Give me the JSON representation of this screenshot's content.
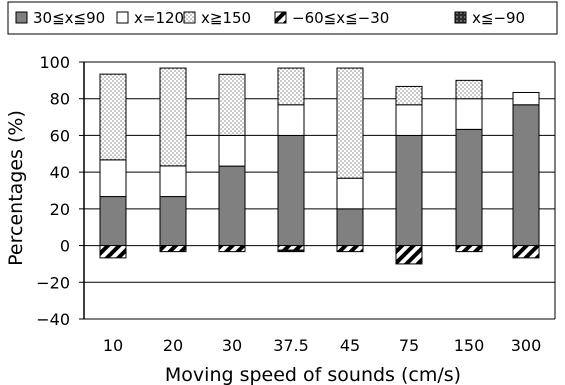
{
  "chart_data": {
    "type": "bar",
    "stacked": true,
    "xlabel": "Moving speed of sounds (cm/s)",
    "ylabel": "Percentages (%)",
    "ylim": [
      -40,
      100
    ],
    "yticks": [
      -40,
      -20,
      0,
      20,
      40,
      60,
      80,
      100
    ],
    "grid": true,
    "legend_position": "top",
    "categories": [
      "10",
      "20",
      "30",
      "37.5",
      "45",
      "75",
      "150",
      "300"
    ],
    "series": [
      {
        "name": "30≦x≦90",
        "direction": "positive",
        "pattern": "solid-gray",
        "values": [
          26.7,
          26.7,
          43.3,
          60,
          20,
          60,
          63.3,
          76.7
        ]
      },
      {
        "name": "x=120",
        "direction": "positive",
        "pattern": "white",
        "values": [
          20,
          16.7,
          16.7,
          16.7,
          16.7,
          16.7,
          16.7,
          6.7
        ]
      },
      {
        "name": "x≧150",
        "direction": "positive",
        "pattern": "dotted",
        "values": [
          46.7,
          53.3,
          33.3,
          20,
          60,
          10,
          10,
          0
        ]
      },
      {
        "name": "−60≦x≦−30",
        "direction": "negative",
        "pattern": "diagonal",
        "values": [
          -6.7,
          -3.3,
          -3.3,
          -2.5,
          -3.3,
          -10,
          -3.3,
          -6.7
        ]
      },
      {
        "name": "x≦−90",
        "direction": "negative",
        "pattern": "dark",
        "values": [
          0,
          0,
          0,
          -0.8,
          0,
          0,
          0,
          0
        ]
      }
    ],
    "colors": {
      "solid-gray": "#808080",
      "white": "#ffffff",
      "dotted": "#e2e2e2",
      "diagonal-stripe": "#000000",
      "dark": "#404040",
      "grid": "#000000",
      "axis": "#000000"
    }
  }
}
